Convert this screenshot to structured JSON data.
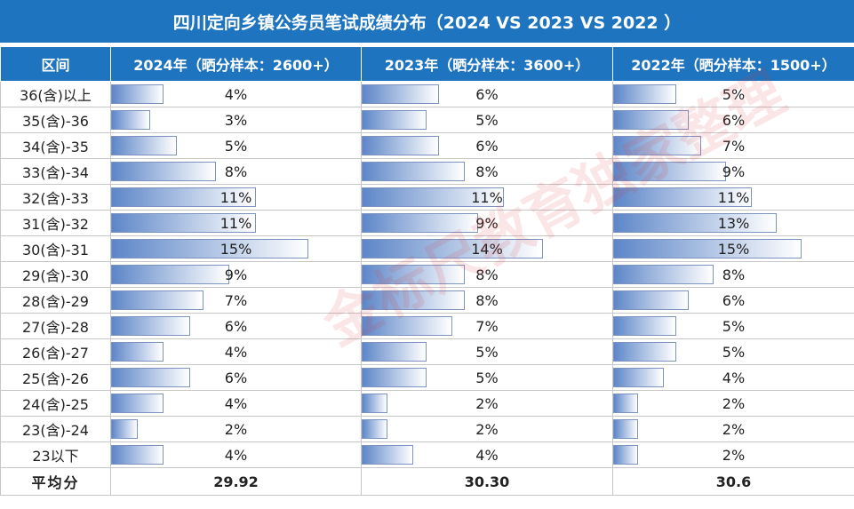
{
  "title": "四川定向乡镇公务员笔试成绩分布（2024 VS 2023 VS 2022 ）",
  "headers": {
    "range": "区间",
    "y2024": "2024年（晒分样本：2600+）",
    "y2023": "2023年（晒分样本：3600+）",
    "y2022": "2022年（晒分样本：1500+）"
  },
  "max_pct": 15,
  "rows": [
    {
      "range": "36(含)以上",
      "v2024": "4%",
      "v2023": "6%",
      "v2022": "5%"
    },
    {
      "range": "35(含)-36",
      "v2024": "3%",
      "v2023": "5%",
      "v2022": "6%"
    },
    {
      "range": "34(含)-35",
      "v2024": "5%",
      "v2023": "6%",
      "v2022": "7%"
    },
    {
      "range": "33(含)-34",
      "v2024": "8%",
      "v2023": "8%",
      "v2022": "9%"
    },
    {
      "range": "32(含)-33",
      "v2024": "11%",
      "v2023": "11%",
      "v2022": "11%"
    },
    {
      "range": "31(含)-32",
      "v2024": "11%",
      "v2023": "9%",
      "v2022": "13%"
    },
    {
      "range": "30(含)-31",
      "v2024": "15%",
      "v2023": "14%",
      "v2022": "15%"
    },
    {
      "range": "29(含)-30",
      "v2024": "9%",
      "v2023": "8%",
      "v2022": "8%"
    },
    {
      "range": "28(含)-29",
      "v2024": "7%",
      "v2023": "8%",
      "v2022": "6%"
    },
    {
      "range": "27(含)-28",
      "v2024": "6%",
      "v2023": "7%",
      "v2022": "5%"
    },
    {
      "range": "26(含)-27",
      "v2024": "4%",
      "v2023": "5%",
      "v2022": "5%"
    },
    {
      "range": "25(含)-26",
      "v2024": "6%",
      "v2023": "5%",
      "v2022": "4%"
    },
    {
      "range": "24(含)-25",
      "v2024": "4%",
      "v2023": "2%",
      "v2022": "2%"
    },
    {
      "range": "23(含)-24",
      "v2024": "2%",
      "v2023": "2%",
      "v2022": "2%"
    },
    {
      "range": "23以下",
      "v2024": "4%",
      "v2023": "4%",
      "v2022": "2%"
    }
  ],
  "average": {
    "label": "平均分",
    "v2024": "29.92",
    "v2023": "30.30",
    "v2022": "30.6"
  },
  "watermark": "金标尺教育独家整理",
  "colors": {
    "header_bg": "#1f74bf",
    "bar": "#5d86c8",
    "average": "#d2161e"
  }
}
